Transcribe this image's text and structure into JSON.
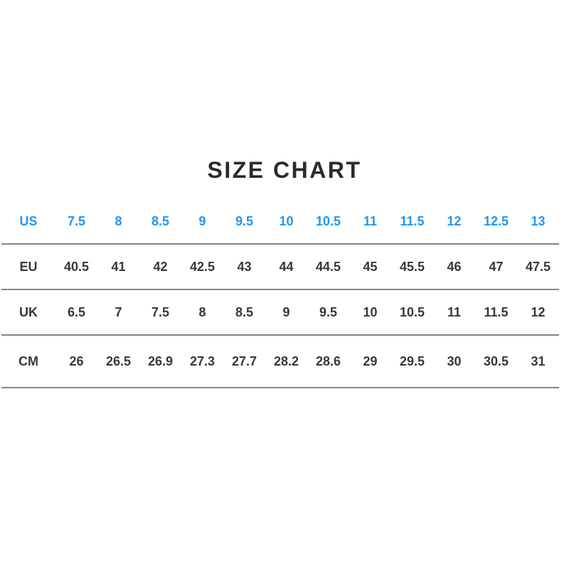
{
  "colors": {
    "accent_blue": "#2196f3",
    "text_dark": "#383838",
    "title_dark": "#2b2a2b",
    "divider_gray": "#858585",
    "background": "#ffffff"
  },
  "chart_data": {
    "type": "table",
    "title": "SIZE CHART",
    "legend_position": "none",
    "grid": "horizontal-dividers-only",
    "rows": [
      {
        "label": "US",
        "accent": true,
        "values": [
          "7.5",
          "8",
          "8.5",
          "9",
          "9.5",
          "10",
          "10.5",
          "11",
          "11.5",
          "12",
          "12.5",
          "13"
        ]
      },
      {
        "label": "EU",
        "accent": false,
        "values": [
          "40.5",
          "41",
          "42",
          "42.5",
          "43",
          "44",
          "44.5",
          "45",
          "45.5",
          "46",
          "47",
          "47.5"
        ]
      },
      {
        "label": "UK",
        "accent": false,
        "values": [
          "6.5",
          "7",
          "7.5",
          "8",
          "8.5",
          "9",
          "9.5",
          "10",
          "10.5",
          "11",
          "11.5",
          "12"
        ]
      },
      {
        "label": "CM",
        "accent": false,
        "values": [
          "26",
          "26.5",
          "26.9",
          "27.3",
          "27.7",
          "28.2",
          "28.6",
          "29",
          "29.5",
          "30",
          "30.5",
          "31"
        ]
      }
    ]
  }
}
